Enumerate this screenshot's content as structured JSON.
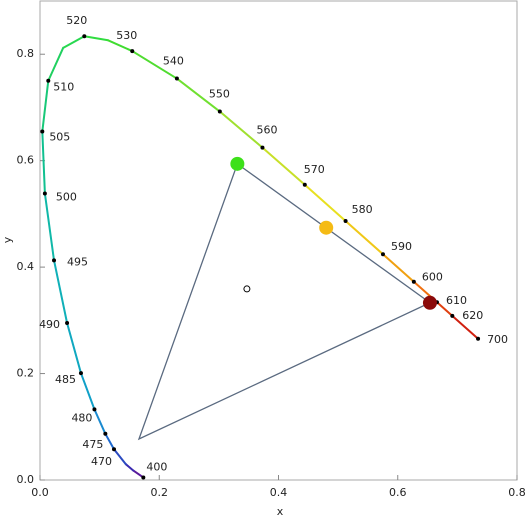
{
  "chart_data": {
    "type": "chromaticity",
    "xlabel": "x",
    "ylabel": "y",
    "xlim": [
      0,
      0.8
    ],
    "ylim": [
      0,
      0.9
    ],
    "xticks": [
      {
        "value": 0,
        "label": "0.0"
      },
      {
        "value": 0.2,
        "label": "0.2"
      },
      {
        "value": 0.4,
        "label": "0.4"
      },
      {
        "value": 0.6,
        "label": "0.6"
      },
      {
        "value": 0.8,
        "label": "0.8"
      }
    ],
    "yticks": [
      {
        "value": 0,
        "label": "0.0"
      },
      {
        "value": 0.2,
        "label": "0.2"
      },
      {
        "value": 0.4,
        "label": "0.4"
      },
      {
        "value": 0.6,
        "label": "0.6"
      },
      {
        "value": 0.8,
        "label": "0.8"
      }
    ],
    "series": [
      {
        "kind": "locus",
        "x": [
          0.1733,
          0.1566,
          0.144,
          0.1241,
          0.1096,
          0.0913,
          0.0687,
          0.0454,
          0.0235,
          0.0082,
          0.0039,
          0.0139,
          0.0389,
          0.0743,
          0.1142,
          0.1547,
          0.2296,
          0.3016,
          0.3731,
          0.4441,
          0.5125,
          0.5752,
          0.627,
          0.6658,
          0.6915,
          0.7347
        ],
        "y": [
          0.0048,
          0.0177,
          0.0297,
          0.0578,
          0.0868,
          0.1327,
          0.2007,
          0.295,
          0.4127,
          0.5384,
          0.6548,
          0.7502,
          0.812,
          0.8338,
          0.8262,
          0.8059,
          0.7543,
          0.6923,
          0.6245,
          0.5547,
          0.4866,
          0.4242,
          0.3725,
          0.334,
          0.3083,
          0.2653
        ],
        "point_labels": [
          400,
          null,
          null,
          470,
          475,
          480,
          485,
          490,
          495,
          500,
          505,
          510,
          null,
          520,
          null,
          530,
          540,
          550,
          560,
          570,
          580,
          590,
          600,
          610,
          620,
          700
        ],
        "colors": [
          "#5a1a9a",
          "#3a2ab0",
          "#2a4ac0",
          "#1e6ad0",
          "#1a8ad0",
          "#10a0c8",
          "#10a8c0",
          "#10b0b8",
          "#10b8a8",
          "#10c090",
          "#18c878",
          "#20d060",
          "#28d850",
          "#30dc40",
          "#40dc30",
          "#50dc30",
          "#70e030",
          "#a0e030",
          "#c8e028",
          "#e8e020",
          "#f0c818",
          "#f0a010",
          "#f07010",
          "#e04010",
          "#d02010",
          "#b00000"
        ]
      },
      {
        "kind": "gamut",
        "color": "#5a6a80",
        "x": [
          0.331,
          0.654,
          0.166
        ],
        "y": [
          0.594,
          0.333,
          0.077
        ]
      },
      {
        "kind": "primaries",
        "x": [
          0.331,
          0.48,
          0.654
        ],
        "y": [
          0.594,
          0.474,
          0.333
        ],
        "colors": [
          "#3de01a",
          "#f5bb15",
          "#8b0a0a"
        ]
      },
      {
        "kind": "whitepoint",
        "x": [
          0.347
        ],
        "y": [
          0.359
        ]
      }
    ]
  }
}
